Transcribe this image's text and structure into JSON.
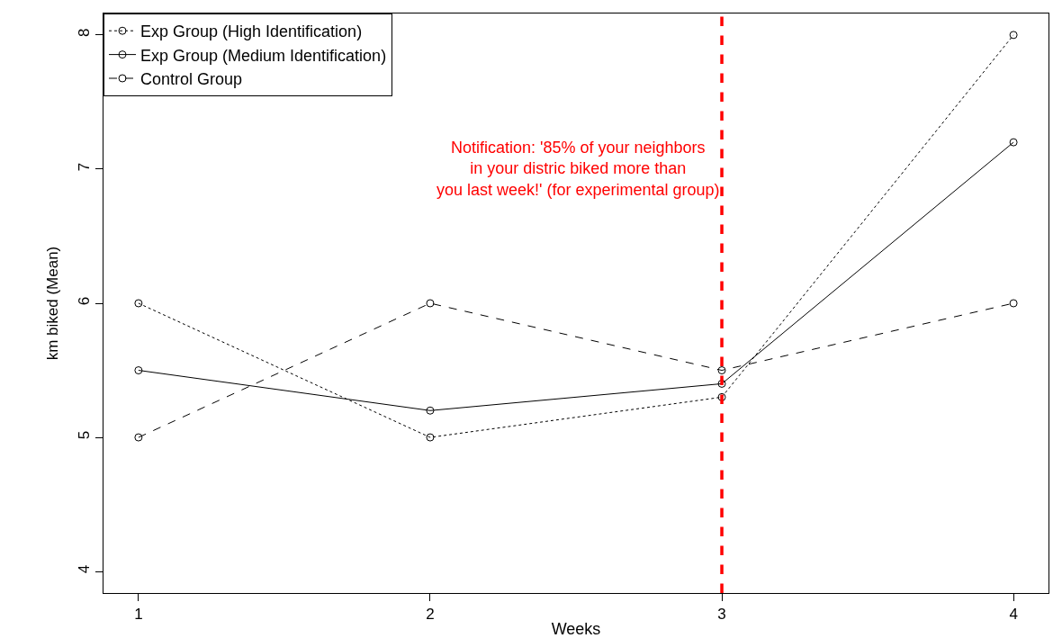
{
  "chart_data": {
    "type": "line",
    "xlabel": "Weeks",
    "ylabel": "km biked (Mean)",
    "x": [
      1,
      2,
      3,
      4
    ],
    "series": [
      {
        "name": "Exp Group (High Identification)",
        "color": "#000000",
        "line_style": "dotted",
        "values": [
          6,
          5,
          5.3,
          8
        ]
      },
      {
        "name": "Exp Group (Medium Identification)",
        "color": "#000000",
        "line_style": "solid",
        "values": [
          5.5,
          5.2,
          5.4,
          7.2
        ]
      },
      {
        "name": "Control Group",
        "color": "#000000",
        "line_style": "dashed",
        "values": [
          5,
          6,
          5.5,
          6
        ]
      }
    ],
    "xlim": [
      0.88,
      4.12
    ],
    "xticks": [
      1,
      2,
      3,
      4
    ],
    "ylim": [
      3.84,
      8.16
    ],
    "yticks": [
      4,
      5,
      6,
      7,
      8
    ],
    "marker": "circle",
    "legend": "top left",
    "ref_lines": [
      {
        "axis": "x",
        "value": 3,
        "color": "#ff0000",
        "line_style": "dashed",
        "label": "Notification: '85% of your neighbors\nin your distric biked more than\nyou last week!' (for experimental group)"
      }
    ]
  }
}
